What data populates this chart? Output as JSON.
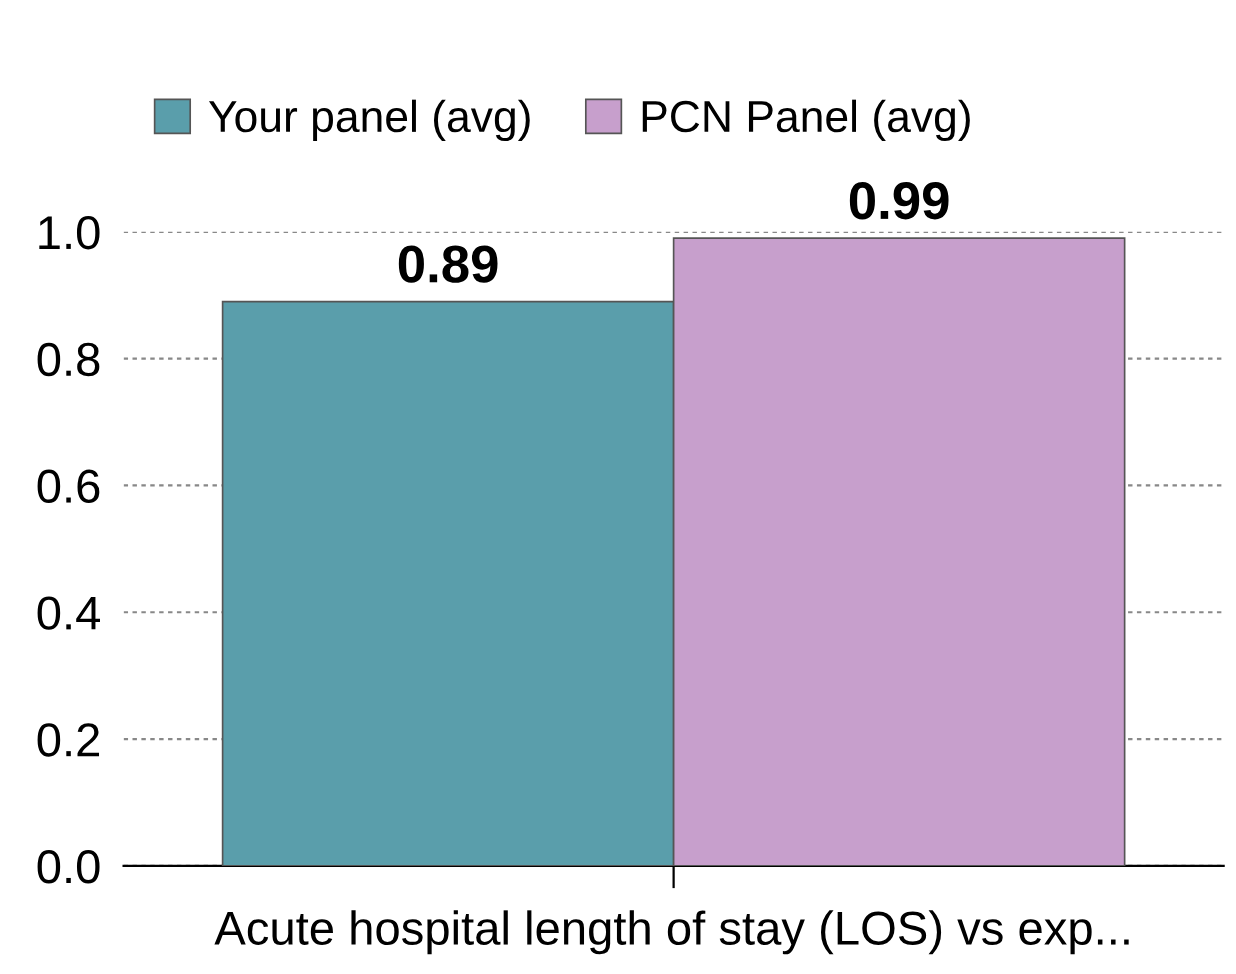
{
  "chart_data": {
    "type": "bar",
    "categories": [
      "Acute hospital length of stay (LOS) vs exp..."
    ],
    "series": [
      {
        "name": "Your panel (avg)",
        "color": "#5a9eab",
        "values": [
          0.89
        ]
      },
      {
        "name": "PCN Panel (avg)",
        "color": "#c79fcc",
        "values": [
          0.99
        ]
      }
    ],
    "ylim": [
      0,
      1.0
    ],
    "yticks": [
      {
        "value": 0,
        "label": "0.0"
      },
      {
        "value": 0.2,
        "label": "0.2"
      },
      {
        "value": 0.4,
        "label": "0.4"
      },
      {
        "value": 0.6,
        "label": "0.6"
      },
      {
        "value": 0.8,
        "label": "0.8"
      },
      {
        "value": 1.0,
        "label": "1.0"
      }
    ],
    "grid": "y",
    "legend": "top",
    "data_labels": true
  }
}
